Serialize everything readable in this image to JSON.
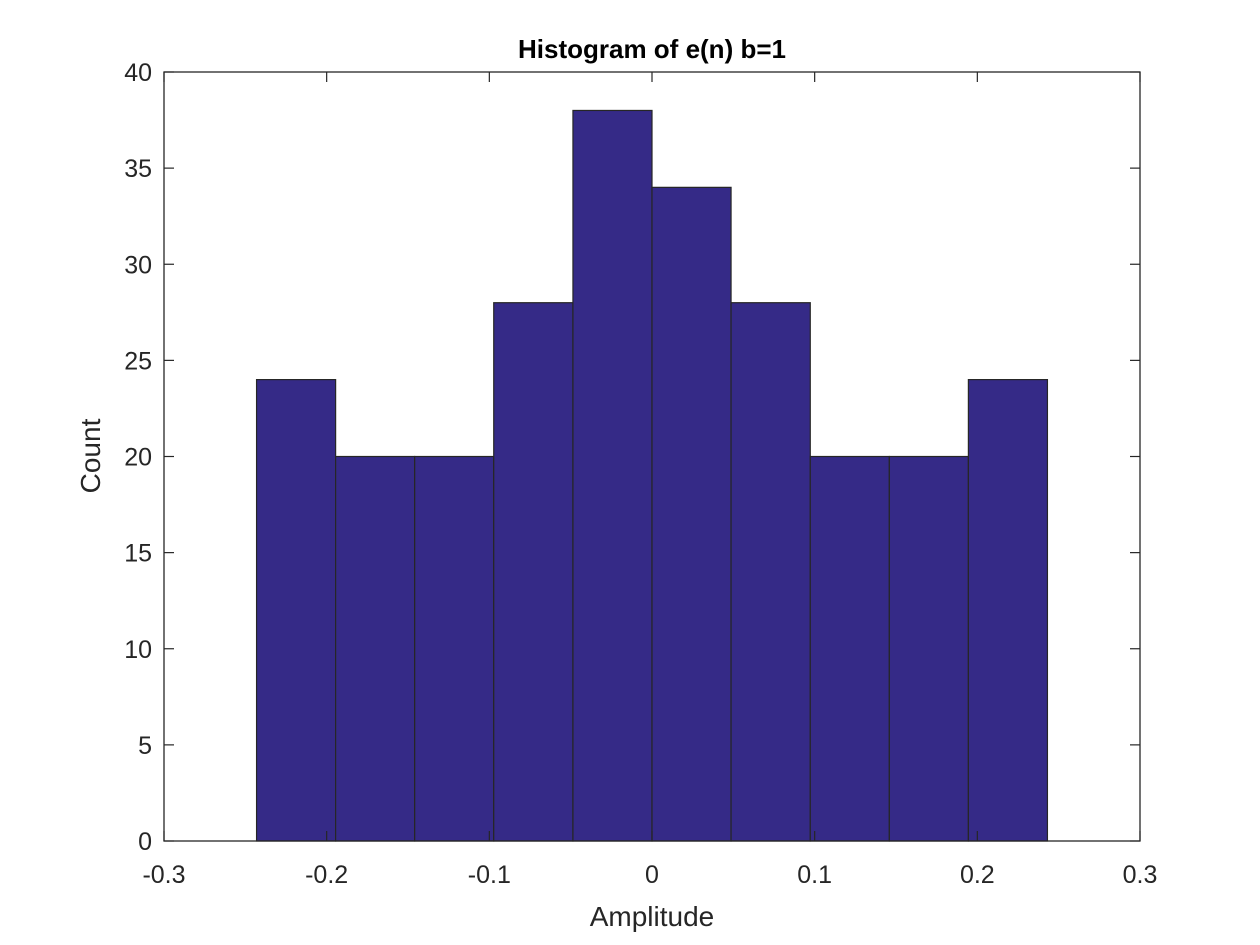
{
  "chart_data": {
    "type": "bar",
    "title": "Histogram of e(n) b=1",
    "xlabel": "Amplitude",
    "ylabel": "Count",
    "xlim": [
      -0.3,
      0.3
    ],
    "ylim": [
      0,
      40
    ],
    "x_ticks": [
      -0.3,
      -0.2,
      -0.1,
      0,
      0.1,
      0.2,
      0.3
    ],
    "x_tick_labels": [
      "-0.3",
      "-0.2",
      "-0.1",
      "0",
      "0.1",
      "0.2",
      "0.3"
    ],
    "y_ticks": [
      0,
      5,
      10,
      15,
      20,
      25,
      30,
      35,
      40
    ],
    "y_tick_labels": [
      "0",
      "5",
      "10",
      "15",
      "20",
      "25",
      "30",
      "35",
      "40"
    ],
    "bin_edges": [
      -0.2431,
      -0.1945,
      -0.1459,
      -0.0973,
      -0.0486,
      0,
      0.0486,
      0.0973,
      0.1459,
      0.1945,
      0.2431
    ],
    "values": [
      24,
      20,
      20,
      28,
      38,
      34,
      28,
      20,
      20,
      24
    ],
    "bar_color": "#352a87",
    "edge_color": "#262626",
    "grid": false,
    "legend": "none"
  }
}
